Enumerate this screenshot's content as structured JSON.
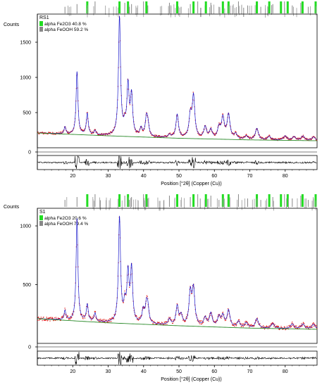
{
  "chart_data": [
    {
      "type": "line",
      "sample": "RS1",
      "ylabel": "Counts",
      "xlabel": "Position [°2θ] (Copper (Cu))",
      "xlim": [
        10,
        89
      ],
      "ylim": [
        0,
        1900
      ],
      "yticks": [
        500,
        1000,
        1500
      ],
      "ytick_labels": [
        "500",
        "1000",
        "1500"
      ],
      "xticks": [
        20,
        30,
        40,
        50,
        60,
        70,
        80
      ],
      "xtick_labels": [
        "20",
        "30",
        "40",
        "50",
        "60",
        "70",
        "80"
      ],
      "legend": [
        {
          "label": "alpha Fe2O3 40.8 %",
          "color": "#22dd22"
        },
        {
          "label": "alpha FeOOH 59.2 %",
          "color": "#888888"
        }
      ],
      "series": [
        {
          "role": "background",
          "color": "#2a8a2a",
          "x": [
            10,
            30,
            50,
            70,
            89
          ],
          "y": [
            210,
            170,
            135,
            112,
            100
          ]
        },
        {
          "role": "peaks",
          "color": "#1a1acc",
          "x": [
            17.8,
            21.2,
            24.1,
            26.3,
            33.2,
            34.7,
            35.6,
            36.6,
            39.3,
            40.8,
            41.2,
            47.3,
            49.5,
            53.2,
            54.1,
            57.4,
            59.0,
            61.3,
            62.4,
            64.0,
            66.0,
            69.0,
            72.0,
            75.5,
            80.0,
            82.5,
            85.0,
            88.0
          ],
          "y": [
            100,
            890,
            300,
            60,
            1680,
            120,
            690,
            560,
            110,
            240,
            160,
            40,
            330,
            300,
            580,
            160,
            120,
            150,
            290,
            340,
            70,
            50,
            160,
            50,
            60,
            50,
            60,
            50
          ]
        }
      ],
      "phase_markers": [
        {
          "phase": "alpha FeOOH",
          "color": "#888888",
          "positions": [
            17.8,
            21.2,
            26.3,
            33.2,
            34.7,
            36.0,
            36.6,
            39.98,
            41.2,
            47.3,
            50.6,
            53.2,
            55.3,
            57.4,
            59.0,
            61.3,
            63.8,
            66.8,
            69.4,
            71.8,
            73.1,
            76.5,
            79.8,
            82.0,
            84.4,
            86.5,
            88.5
          ]
        },
        {
          "phase": "alpha Fe2O3",
          "color": "#22dd22",
          "positions": [
            24.1,
            33.2,
            35.6,
            40.8,
            49.5,
            54.1,
            57.6,
            62.4,
            64.0,
            72.0,
            75.5,
            78.8,
            80.7,
            84.9,
            88.6
          ]
        }
      ]
    },
    {
      "type": "line",
      "sample": "S1",
      "ylabel": "Counts",
      "xlabel": "Position [°2θ] (Copper (Cu))",
      "xlim": [
        10,
        89
      ],
      "ylim": [
        0,
        1150
      ],
      "yticks": [
        500,
        1000
      ],
      "ytick_labels": [
        "500",
        "1000"
      ],
      "xticks": [
        20,
        30,
        40,
        50,
        60,
        70,
        80
      ],
      "xtick_labels": [
        "20",
        "30",
        "40",
        "50",
        "60",
        "70",
        "80"
      ],
      "legend": [
        {
          "label": "alpha Fe2O3 20.6 %",
          "color": "#22dd22"
        },
        {
          "label": "alpha FeOOH 79.4 %",
          "color": "#888888"
        }
      ],
      "series": [
        {
          "role": "background",
          "color": "#2a8a2a",
          "x": [
            10,
            30,
            50,
            70,
            89
          ],
          "y": [
            210,
            175,
            150,
            130,
            120
          ]
        },
        {
          "role": "peaks",
          "color": "#1a1acc",
          "x": [
            17.8,
            21.2,
            24.1,
            26.3,
            33.2,
            34.7,
            35.6,
            36.6,
            39.9,
            40.8,
            41.2,
            47.3,
            49.5,
            50.6,
            53.2,
            54.1,
            57.4,
            59.0,
            61.3,
            62.4,
            64.0,
            66.8,
            69.0,
            72.0,
            76.5,
            82.0,
            85.0,
            88.0
          ],
          "y": [
            80,
            870,
            140,
            70,
            890,
            140,
            400,
            450,
            110,
            140,
            120,
            50,
            160,
            80,
            270,
            300,
            70,
            110,
            80,
            90,
            140,
            50,
            40,
            80,
            40,
            40,
            40,
            40
          ]
        }
      ],
      "phase_markers": [
        {
          "phase": "alpha FeOOH",
          "color": "#888888",
          "positions": [
            17.8,
            21.2,
            26.3,
            33.2,
            34.7,
            36.0,
            36.6,
            39.98,
            41.2,
            47.3,
            50.6,
            53.2,
            55.3,
            57.4,
            59.0,
            61.3,
            63.8,
            66.8,
            69.4,
            71.8,
            73.1,
            76.5,
            79.8,
            82.0,
            84.4,
            86.5,
            88.5
          ]
        },
        {
          "phase": "alpha Fe2O3",
          "color": "#22dd22",
          "positions": [
            24.1,
            33.2,
            35.6,
            40.8,
            49.5,
            54.1,
            57.6,
            62.4,
            64.0,
            72.0,
            75.5,
            78.8,
            80.7,
            84.9,
            88.6
          ]
        }
      ]
    }
  ]
}
